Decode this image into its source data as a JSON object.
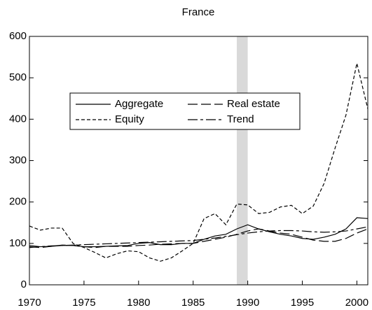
{
  "chart_data": {
    "type": "line",
    "title": "France",
    "x": [
      1970,
      1971,
      1972,
      1973,
      1974,
      1975,
      1976,
      1977,
      1978,
      1979,
      1980,
      1981,
      1982,
      1983,
      1984,
      1985,
      1986,
      1987,
      1988,
      1989,
      1990,
      1991,
      1992,
      1993,
      1994,
      1995,
      1996,
      1997,
      1998,
      1999,
      2000,
      2001
    ],
    "series": [
      {
        "name": "Aggregate",
        "color": "#000000",
        "dash": "none",
        "values": [
          95,
          92,
          93,
          95,
          95,
          92,
          92,
          93,
          94,
          95,
          100,
          102,
          97,
          97,
          100,
          100,
          110,
          118,
          122,
          135,
          145,
          135,
          128,
          122,
          118,
          112,
          110,
          115,
          122,
          135,
          162,
          160
        ]
      },
      {
        "name": "Real estate",
        "color": "#000000",
        "dash": "14,5",
        "values": [
          92,
          90,
          93,
          96,
          95,
          92,
          90,
          93,
          93,
          93,
          95,
          96,
          98,
          99,
          100,
          100,
          105,
          110,
          115,
          122,
          130,
          135,
          130,
          125,
          122,
          115,
          108,
          105,
          105,
          112,
          125,
          135
        ]
      },
      {
        "name": "Equity",
        "color": "#000000",
        "dash": "5,3",
        "values": [
          142,
          132,
          137,
          137,
          100,
          90,
          78,
          65,
          75,
          82,
          80,
          65,
          57,
          65,
          82,
          100,
          160,
          172,
          145,
          195,
          193,
          172,
          175,
          188,
          192,
          172,
          190,
          245,
          330,
          410,
          535,
          425
        ]
      },
      {
        "name": "Trend",
        "color": "#000000",
        "dash": "14,4,4,4",
        "values": [
          90,
          92,
          94,
          95,
          96,
          97,
          98,
          99,
          100,
          101,
          102,
          103,
          104,
          105,
          106,
          107,
          110,
          113,
          117,
          121,
          125,
          128,
          130,
          131,
          131,
          130,
          128,
          127,
          128,
          130,
          135,
          140
        ]
      }
    ],
    "shade": [
      1989,
      1990
    ],
    "shade_color": "#d9d9d9",
    "xlim": [
      1970,
      2001
    ],
    "xticks": [
      1970,
      1975,
      1980,
      1985,
      1990,
      1995,
      2000
    ],
    "ylim": [
      0,
      600
    ],
    "yticks": [
      0,
      100,
      200,
      300,
      400,
      500,
      600
    ]
  }
}
